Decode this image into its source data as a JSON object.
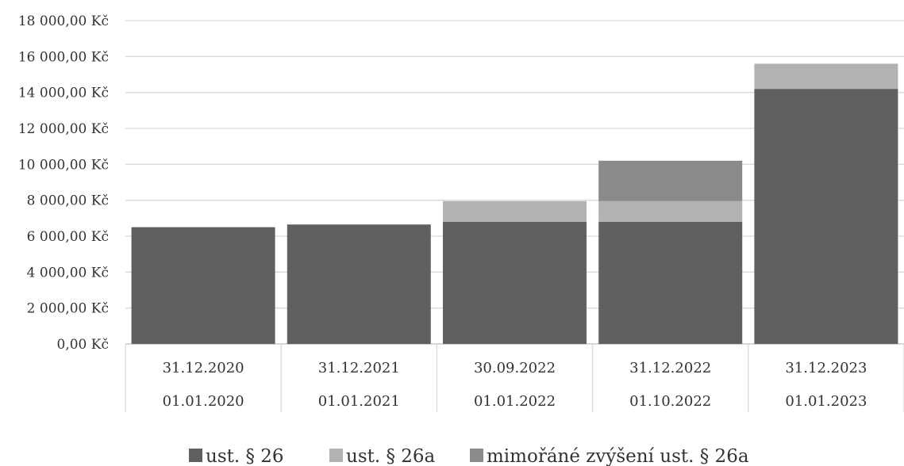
{
  "chart_data": {
    "type": "bar",
    "stacked": true,
    "categories": [
      [
        "31.12.2020",
        "01.01.2020"
      ],
      [
        "31.12.2021",
        "01.01.2021"
      ],
      [
        "30.09.2022",
        "01.01.2022"
      ],
      [
        "31.12.2022",
        "01.10.2022"
      ],
      [
        "31.12.2023",
        "01.01.2023"
      ]
    ],
    "series": [
      {
        "name": "ust. § 26",
        "color": "#606060",
        "values": [
          6500,
          6650,
          6800,
          6800,
          14200
        ]
      },
      {
        "name": "ust. § 26a",
        "color": "#b2b2b2",
        "values": [
          0,
          0,
          1150,
          1150,
          1400
        ]
      },
      {
        "name": "mimořáné zvýšení ust. § 26a",
        "color": "#8a8a8a",
        "values": [
          0,
          0,
          0,
          2250,
          0
        ]
      }
    ],
    "ylim": [
      0,
      18000
    ],
    "yticks": [
      0,
      2000,
      4000,
      6000,
      8000,
      10000,
      12000,
      14000,
      16000,
      18000
    ],
    "ytick_labels": [
      "0,00 Kč",
      "2 000,00 Kč",
      "4 000,00 Kč",
      "6 000,00 Kč",
      "8 000,00 Kč",
      "10 000,00 Kč",
      "12 000,00 Kč",
      "14 000,00 Kč",
      "16 000,00 Kč",
      "18 000,00 Kč"
    ],
    "grid": true,
    "legend_position": "bottom",
    "title": "",
    "xlabel": "",
    "ylabel": ""
  }
}
